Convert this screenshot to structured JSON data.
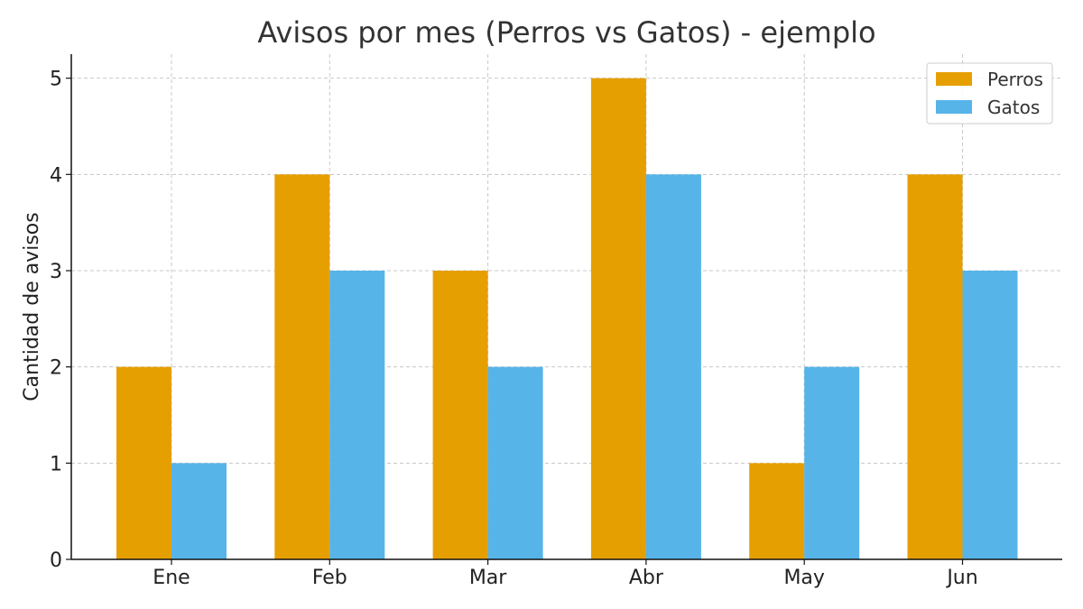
{
  "chart_data": {
    "type": "bar",
    "title": "Avisos por mes (Perros vs Gatos) - ejemplo",
    "xlabel": "",
    "ylabel": "Cantidad de avisos",
    "categories": [
      "Ene",
      "Feb",
      "Mar",
      "Abr",
      "May",
      "Jun"
    ],
    "series": [
      {
        "name": "Perros",
        "color": "#E69F00",
        "values": [
          2,
          4,
          3,
          5,
          1,
          4
        ]
      },
      {
        "name": "Gatos",
        "color": "#56B4E9",
        "values": [
          1,
          3,
          2,
          4,
          2,
          3
        ]
      }
    ],
    "ylim": [
      0,
      5.25
    ],
    "yticks": [
      0,
      1,
      2,
      3,
      4,
      5
    ],
    "grid": true,
    "legend": "top-right"
  }
}
